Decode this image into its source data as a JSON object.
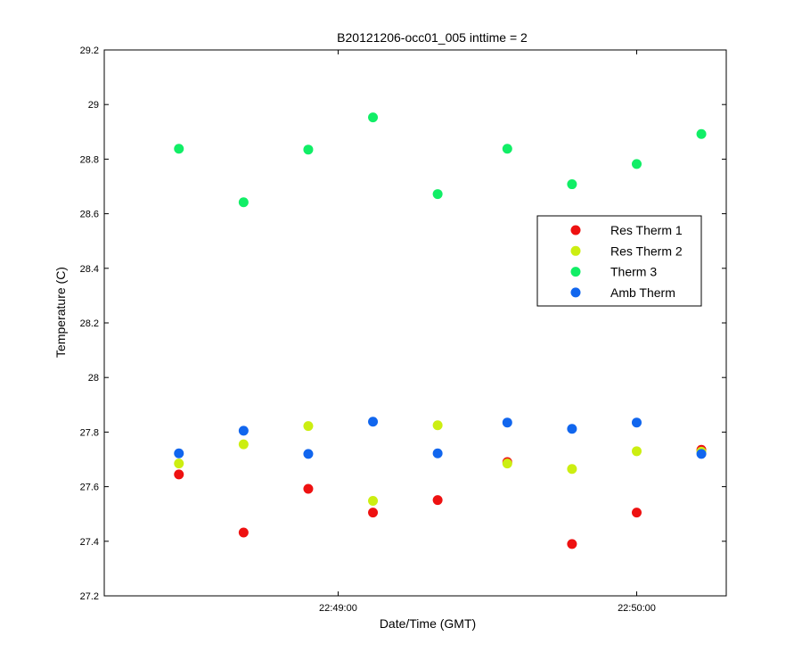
{
  "chart_data": {
    "type": "scatter",
    "title": "B20121206-occ01_005 inttime = 2",
    "xlabel": "Date/Time (GMT)",
    "ylabel": "Temperature (C)",
    "xlim": [
      "22:48:13",
      "22:50:18"
    ],
    "ylim": [
      27.2,
      29.2
    ],
    "yticks": [
      27.2,
      27.4,
      27.6,
      27.8,
      28,
      28.2,
      28.4,
      28.6,
      28.8,
      29,
      29.2
    ],
    "ytick_labels": [
      "27.2",
      "27.4",
      "27.6",
      "27.8",
      "28",
      "28.2",
      "28.4",
      "28.6",
      "28.8",
      "29",
      "29.2"
    ],
    "xticks": [
      "22:49:00",
      "22:50:00"
    ],
    "xtick_labels": [
      "22:49:00",
      "22:50:00"
    ],
    "grid": false,
    "legend_position": "right-middle",
    "x": [
      "22:48:28",
      "22:48:41",
      "22:48:54",
      "22:49:07",
      "22:49:20",
      "22:49:34",
      "22:49:47",
      "22:50:00",
      "22:50:13"
    ],
    "series": [
      {
        "name": "Res Therm 1",
        "color": "#ee1111",
        "values": [
          27.645,
          27.432,
          27.592,
          27.505,
          27.551,
          27.69,
          27.39,
          27.505,
          27.735
        ]
      },
      {
        "name": "Res Therm 2",
        "color": "#ccee11",
        "values": [
          27.685,
          27.755,
          27.822,
          27.548,
          27.825,
          27.685,
          27.665,
          27.73,
          27.728
        ]
      },
      {
        "name": "Therm 3",
        "color": "#11ee66",
        "values": [
          28.838,
          28.642,
          28.835,
          28.953,
          28.672,
          28.838,
          28.708,
          28.782,
          28.892
        ]
      },
      {
        "name": "Amb Therm",
        "color": "#1166ee",
        "values": [
          27.722,
          27.805,
          27.72,
          27.838,
          27.722,
          27.835,
          27.812,
          27.835,
          27.72
        ]
      }
    ]
  }
}
